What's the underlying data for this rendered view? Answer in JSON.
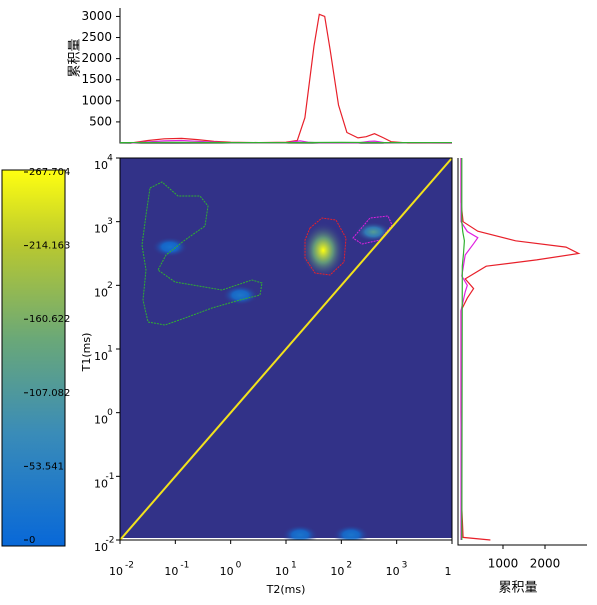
{
  "chart_data": {
    "type": "heatmap",
    "xlabel": "T2(ms)",
    "ylabel": "T1(ms)",
    "xlog": true,
    "ylog": true,
    "xlim": [
      0.01,
      10000
    ],
    "ylim": [
      0.01,
      10000
    ],
    "xticks": [
      {
        "value": 0.01,
        "label": "10",
        "exp": "-2"
      },
      {
        "value": 0.1,
        "label": "10",
        "exp": "-1"
      },
      {
        "value": 1,
        "label": "10",
        "exp": "0"
      },
      {
        "value": 10,
        "label": "10",
        "exp": "1"
      },
      {
        "value": 100,
        "label": "10",
        "exp": "2"
      },
      {
        "value": 1000,
        "label": "10",
        "exp": "3"
      },
      {
        "value": 10000,
        "label": "1"
      }
    ],
    "yticks": [
      {
        "value": 0.01,
        "label": "10",
        "exp": "-2"
      },
      {
        "value": 0.1,
        "label": "10",
        "exp": "-1"
      },
      {
        "value": 1,
        "label": "10",
        "exp": "0"
      },
      {
        "value": 10,
        "label": "10",
        "exp": "1"
      },
      {
        "value": 100,
        "label": "10",
        "exp": "2"
      },
      {
        "value": 1000,
        "label": "10",
        "exp": "3"
      },
      {
        "value": 10000,
        "label": "10",
        "exp": "4"
      }
    ],
    "background": "#323288",
    "diagonal_color": "#f2e21c",
    "peaks": [
      {
        "x": 47,
        "y": 355,
        "value": 267.704
      },
      {
        "x": 380,
        "y": 690,
        "value": 120
      },
      {
        "x": 1.5,
        "y": 70,
        "value": 35
      },
      {
        "x": 0.08,
        "y": 400,
        "value": 25
      },
      {
        "x": 18,
        "y": 0.012,
        "value": 30
      },
      {
        "x": 150,
        "y": 0.012,
        "value": 30
      }
    ],
    "colorbar": {
      "lim": [
        0,
        267.704
      ],
      "ticks": [
        0,
        53.541,
        107.082,
        160.622,
        214.163,
        267.704
      ]
    },
    "top": {
      "ylabel": "累积量",
      "ylim": [
        0,
        3200
      ],
      "yticks": [
        500,
        1000,
        1500,
        2000,
        2500,
        3000
      ],
      "series": [
        {
          "name": "red",
          "color": "#e8202a",
          "x": [
            0.016,
            0.032,
            0.063,
            0.13,
            0.25,
            0.5,
            1,
            3.2,
            10,
            16,
            22,
            32,
            40,
            50,
            63,
            89,
            126,
            200,
            282,
            398,
            562,
            794,
            1585,
            10000
          ],
          "values": [
            0,
            60,
            100,
            110,
            80,
            40,
            20,
            10,
            20,
            60,
            600,
            2300,
            3050,
            3000,
            2200,
            900,
            250,
            120,
            150,
            220,
            130,
            30,
            0,
            0
          ]
        },
        {
          "name": "magenta",
          "color": "#e020e0",
          "x": [
            0.016,
            0.063,
            0.13,
            0.25,
            1,
            10,
            18,
            25,
            40,
            200,
            320,
            400,
            600,
            10000
          ],
          "values": [
            0,
            50,
            60,
            40,
            5,
            5,
            50,
            20,
            5,
            5,
            40,
            45,
            10,
            0
          ]
        },
        {
          "name": "green",
          "color": "#30b030",
          "x": [
            0.01,
            0.1,
            1,
            10,
            100,
            1000,
            10000
          ],
          "values": [
            10,
            15,
            10,
            10,
            15,
            10,
            10
          ]
        }
      ]
    },
    "right": {
      "xlabel": "累积量",
      "xlim": [
        0,
        3000
      ],
      "xticks": [
        1000,
        2000
      ],
      "series": [
        {
          "name": "red",
          "color": "#e8202a",
          "y": [
            0.01,
            0.011,
            0.032,
            1,
            10,
            40,
            63,
            89,
            126,
            200,
            251,
            316,
            398,
            501,
            708,
            1000,
            2000,
            10000
          ],
          "values": [
            700,
            50,
            20,
            0,
            0,
            0,
            150,
            300,
            100,
            600,
            1800,
            2800,
            2500,
            1300,
            400,
            50,
            0,
            0
          ]
        },
        {
          "name": "magenta",
          "color": "#e020e0",
          "y": [
            0.01,
            40,
            79,
            100,
            140,
            300,
            450,
            560,
            700,
            1000,
            10000
          ],
          "values": [
            0,
            0,
            100,
            150,
            20,
            100,
            300,
            400,
            150,
            0,
            0
          ]
        },
        {
          "name": "green",
          "color": "#30b030",
          "y": [
            0.01,
            200,
            316,
            500,
            700,
            1000,
            10000
          ],
          "values": [
            20,
            30,
            60,
            80,
            40,
            20,
            20
          ]
        }
      ]
    }
  }
}
